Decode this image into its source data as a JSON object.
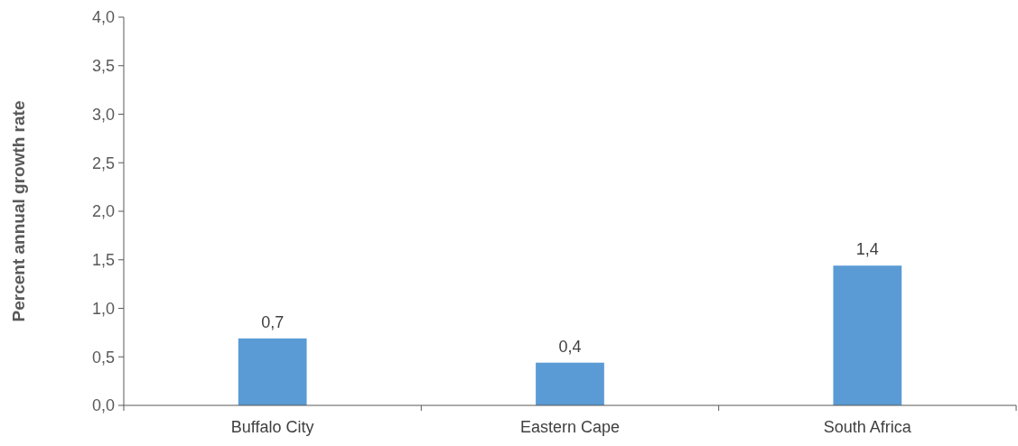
{
  "chart_data": {
    "type": "bar",
    "ylabel": "Percent annual growth rate",
    "categories": [
      "Buffalo City",
      "Eastern Cape",
      "South Africa"
    ],
    "values": [
      0.69,
      0.44,
      1.44
    ],
    "color": "#5b9bd5",
    "value_labels": [
      "0,7",
      "0,4",
      "1,4"
    ],
    "ylim": [
      0,
      4
    ],
    "yticks": [
      {
        "value": 0,
        "label": "0,0"
      },
      {
        "value": 0.5,
        "label": "0,5"
      },
      {
        "value": 1,
        "label": "1,0"
      },
      {
        "value": 1.5,
        "label": "1,5"
      },
      {
        "value": 2,
        "label": "2,0"
      },
      {
        "value": 2.5,
        "label": "2,5"
      },
      {
        "value": 3,
        "label": "3,0"
      },
      {
        "value": 3.5,
        "label": "3,5"
      },
      {
        "value": 4,
        "label": "4,0"
      }
    ],
    "grid": false
  }
}
